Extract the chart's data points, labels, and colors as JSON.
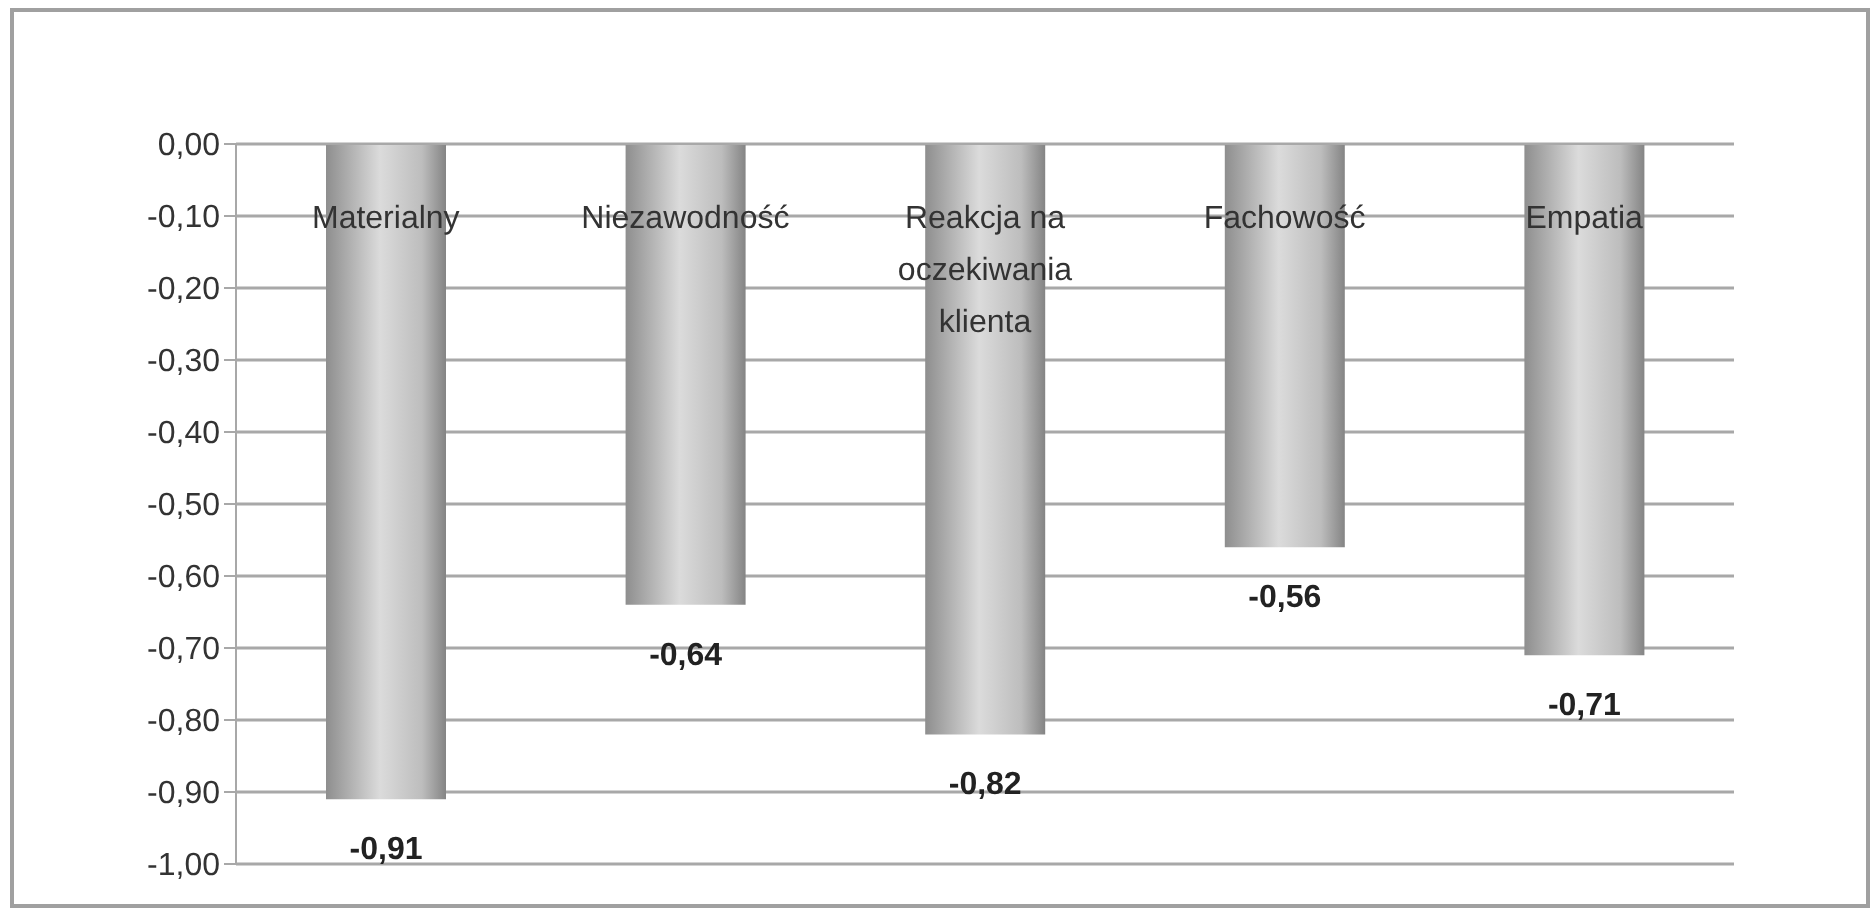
{
  "chart_data": {
    "type": "bar",
    "categories": [
      "Materialny",
      "Niezawodność",
      "Reakcja na oczekiwania klienta",
      "Fachowość",
      "Empatia"
    ],
    "values": [
      -0.91,
      -0.64,
      -0.82,
      -0.56,
      -0.71
    ],
    "color": "#bdbdbd",
    "value_labels": [
      "-0,91",
      "-0,64",
      "-0,82",
      "-0,56",
      "-0,71"
    ],
    "ylim": [
      -1,
      0
    ],
    "yticks": [
      {
        "value": -1,
        "label": "-1,00"
      },
      {
        "value": -0.9,
        "label": "-0,90"
      },
      {
        "value": -0.8,
        "label": "-0,80"
      },
      {
        "value": -0.7,
        "label": "-0,70"
      },
      {
        "value": -0.6,
        "label": "-0,60"
      },
      {
        "value": -0.5,
        "label": "-0,50"
      },
      {
        "value": -0.4,
        "label": "-0,40"
      },
      {
        "value": -0.3,
        "label": "-0,30"
      },
      {
        "value": -0.2,
        "label": "-0,20"
      },
      {
        "value": -0.1,
        "label": "-0,10"
      },
      {
        "value": 0,
        "label": "0,00"
      }
    ],
    "grid": "y"
  }
}
